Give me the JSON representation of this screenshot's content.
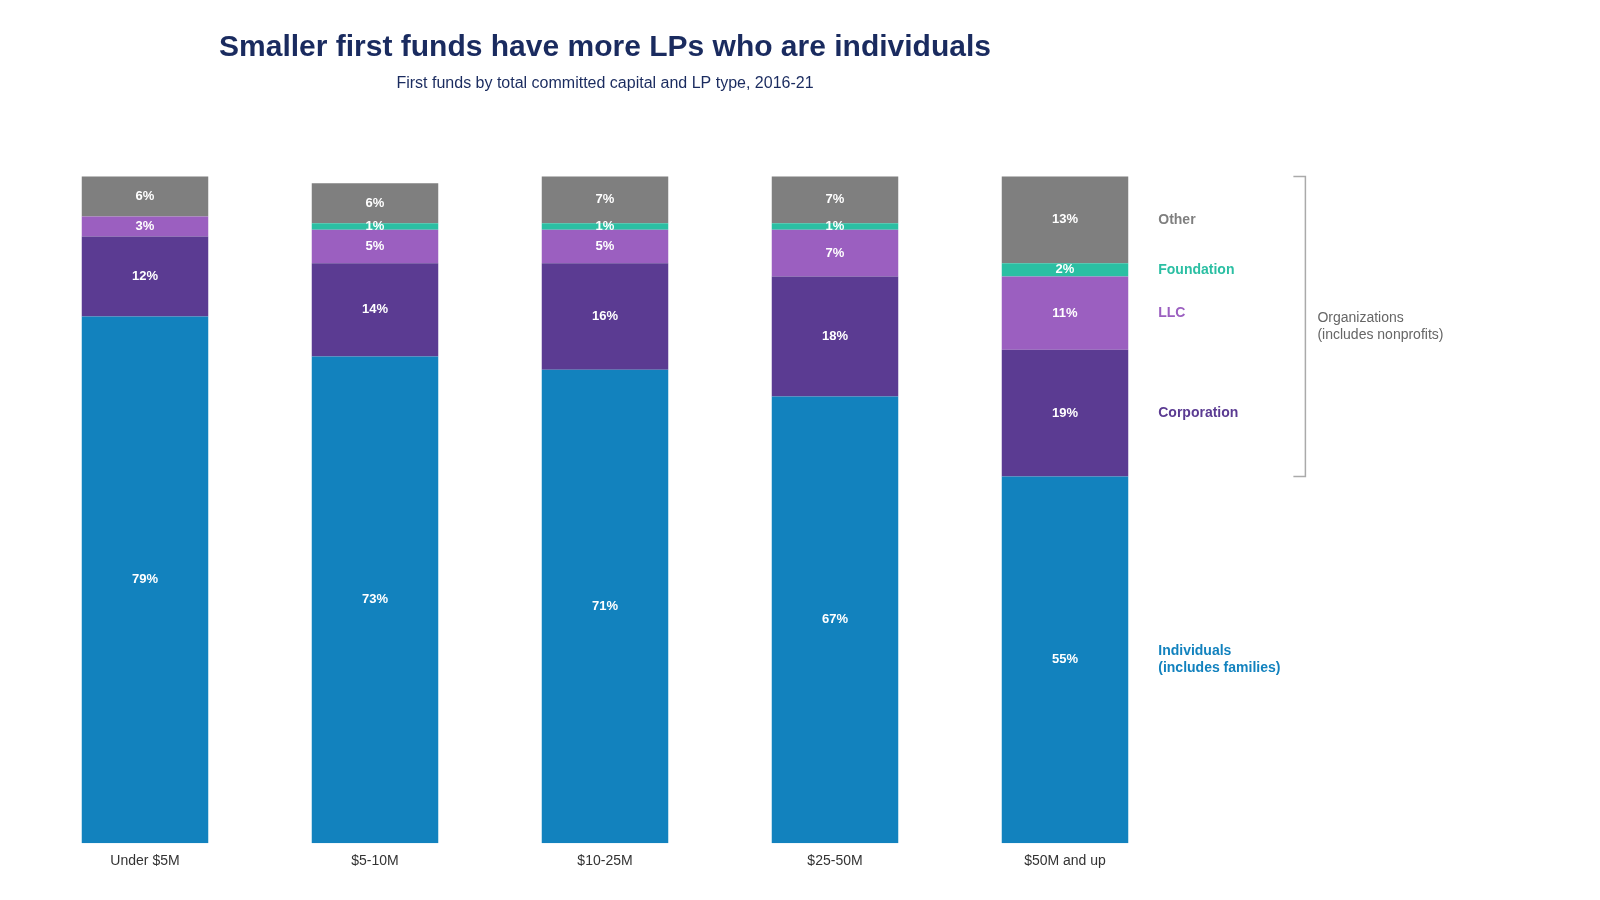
{
  "chart_data": {
    "type": "bar",
    "title": "Smaller first funds have more LPs who are individuals",
    "subtitle": "First funds by total committed capital and LP type, 2016-21",
    "categories": [
      "Under $5M",
      "$5-10M",
      "$10-25M",
      "$25-50M",
      "$50M and up"
    ],
    "series": [
      {
        "name": "Individuals\n(includes families)",
        "color": "#1282BE",
        "values": [
          79,
          73,
          71,
          67,
          55
        ],
        "value_labels": [
          "79%",
          "73%",
          "71%",
          "67%",
          "55%"
        ]
      },
      {
        "name": "Corporation",
        "color": "#5B3B92",
        "values": [
          12,
          14,
          16,
          18,
          19
        ],
        "value_labels": [
          "12%",
          "14%",
          "16%",
          "18%",
          "19%"
        ]
      },
      {
        "name": "LLC",
        "color": "#9B5FC0",
        "values": [
          3,
          5,
          5,
          7,
          11
        ],
        "value_labels": [
          "3%",
          "5%",
          "5%",
          "7%",
          "11%"
        ]
      },
      {
        "name": "Foundation",
        "color": "#2BBFA3",
        "values": [
          0,
          1,
          1,
          1,
          2
        ],
        "value_labels": [
          null,
          "1%",
          "1%",
          "1%",
          "2%"
        ]
      },
      {
        "name": "Other",
        "color": "#7F7F7F",
        "values": [
          6,
          6,
          7,
          7,
          13
        ],
        "value_labels": [
          "6%",
          "6%",
          "7%",
          "7%",
          "13%"
        ]
      }
    ],
    "annotations": [
      {
        "text": "Organizations\n(includes nonprofits)"
      }
    ],
    "ylim": [
      0,
      108
    ],
    "stacked": true,
    "data_labels": true,
    "grid": false,
    "legend": "right",
    "tick_labels": "x"
  }
}
